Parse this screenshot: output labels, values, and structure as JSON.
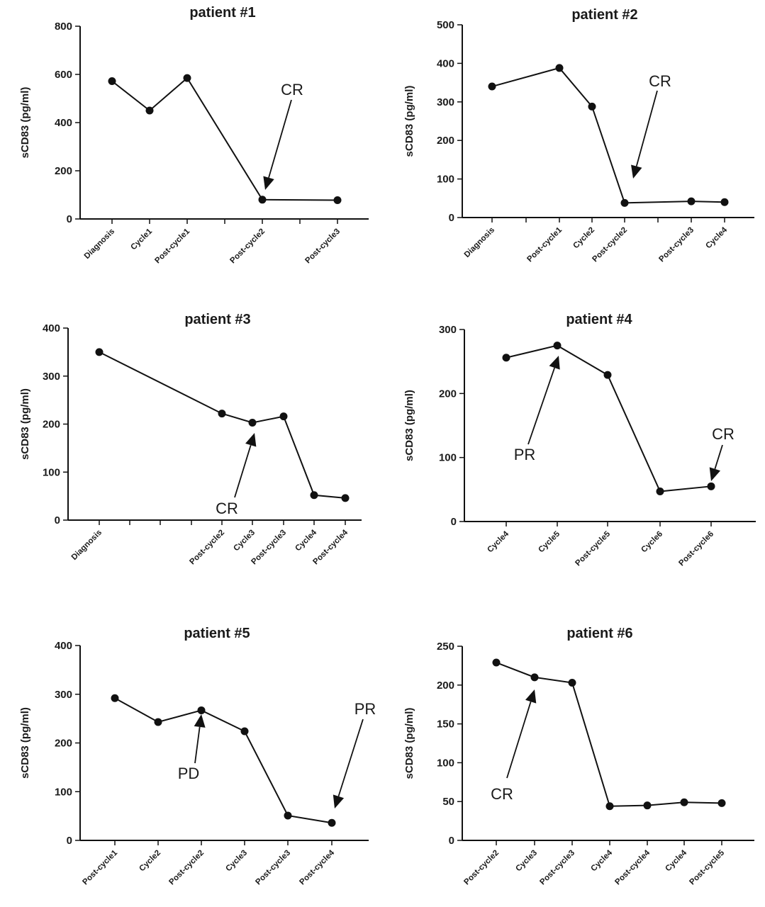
{
  "chart_data": [
    {
      "type": "line",
      "title": "patient #1",
      "ylabel": "sCD83 (pg/ml)",
      "xlabel": "",
      "ylim": [
        0,
        800
      ],
      "yticks": [
        0,
        200,
        400,
        600,
        800
      ],
      "categories": [
        "Diagnosis",
        "Cycle1",
        "Post-cycle1",
        "",
        "Post-cycle2",
        "",
        "Post-cycle3"
      ],
      "values": [
        572,
        450,
        585,
        null,
        80,
        null,
        78
      ],
      "annotations": [
        {
          "text": "CR",
          "target_category": "Post-cycle2",
          "target_value": 80
        }
      ]
    },
    {
      "type": "line",
      "title": "patient #2",
      "ylabel": "sCD83 (pg/ml)",
      "xlabel": "",
      "ylim": [
        0,
        500
      ],
      "yticks": [
        0,
        100,
        200,
        300,
        400,
        500
      ],
      "categories": [
        "Diagnosis",
        "",
        "Post-cycle1",
        "Cycle2",
        "Post-cycle2",
        "",
        "Post-cycle3",
        "Cycle4"
      ],
      "values": [
        340,
        null,
        388,
        288,
        38,
        null,
        42,
        40
      ],
      "annotations": [
        {
          "text": "CR",
          "target_category": "Post-cycle2",
          "target_value": 38
        }
      ]
    },
    {
      "type": "line",
      "title": "patient #3",
      "ylabel": "sCD83 (pg/ml)",
      "xlabel": "",
      "ylim": [
        0,
        400
      ],
      "yticks": [
        0,
        100,
        200,
        300,
        400
      ],
      "categories": [
        "Diagnosis",
        "",
        "",
        "",
        "Post-cycle2",
        "Cycle3",
        "Post-cycle3",
        "Cycle4",
        "Post-cycle4"
      ],
      "values": [
        350,
        null,
        null,
        null,
        222,
        203,
        216,
        52,
        46
      ],
      "annotations": [
        {
          "text": "CR",
          "target_category": "Cycle3",
          "target_value": 203
        }
      ]
    },
    {
      "type": "line",
      "title": "patient #4",
      "ylabel": "sCD83 (pg/ml)",
      "xlabel": "",
      "ylim": [
        0,
        300
      ],
      "yticks": [
        0,
        100,
        200,
        300
      ],
      "categories": [
        "Cycle4",
        "Cycle5",
        "Post-cycle5",
        "Cycle6",
        "Post-cycle6"
      ],
      "values": [
        256,
        275,
        229,
        47,
        55
      ],
      "annotations": [
        {
          "text": "PR",
          "target_category": "Cycle5",
          "target_value": 275
        },
        {
          "text": "CR",
          "target_category": "Post-cycle6",
          "target_value": 55
        }
      ]
    },
    {
      "type": "line",
      "title": "patient #5",
      "ylabel": "sCD83 (pg/ml)",
      "xlabel": "",
      "ylim": [
        0,
        400
      ],
      "yticks": [
        0,
        100,
        200,
        300,
        400
      ],
      "categories": [
        "Post-cycle1",
        "Cycle2",
        "Post-cycle2",
        "Cycle3",
        "Post-cycle3",
        "Post-cycle4"
      ],
      "values": [
        292,
        243,
        267,
        224,
        51,
        36
      ],
      "annotations": [
        {
          "text": "PD",
          "target_category": "Post-cycle2",
          "target_value": 267
        },
        {
          "text": "PR",
          "target_category": "Post-cycle4",
          "target_value": 36
        }
      ]
    },
    {
      "type": "line",
      "title": "patient #6",
      "ylabel": "sCD83 (pg/ml)",
      "xlabel": "",
      "ylim": [
        0,
        250
      ],
      "yticks": [
        0,
        50,
        100,
        150,
        200,
        250
      ],
      "categories": [
        "Post-cycle2",
        "Cycle3",
        "Post-cycle3",
        "Cycle4",
        "Post-cycle4",
        "Cycle4",
        "Post-cycle5"
      ],
      "values": [
        229,
        210,
        203,
        44,
        45,
        49,
        48
      ],
      "annotations": [
        {
          "text": "CR",
          "target_category": "Cycle3",
          "target_value": 210
        }
      ]
    }
  ]
}
